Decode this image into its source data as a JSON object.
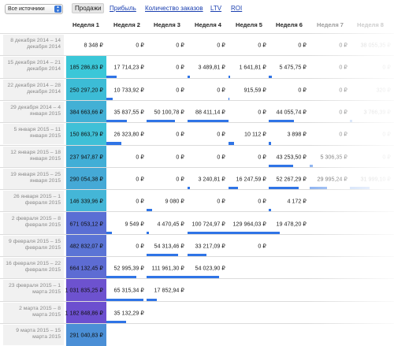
{
  "toolbar": {
    "source_select": "Все источники",
    "tabs": [
      "Продажи",
      "Прибыль",
      "Количество заказов",
      "LTV",
      "ROI"
    ],
    "active_tab": 0
  },
  "header": [
    "Неделя 1",
    "Неделя 2",
    "Неделя 3",
    "Неделя 4",
    "Неделя 5",
    "Неделя 6",
    "Неделя 7",
    "Неделя 8"
  ],
  "rows": [
    {
      "label": "8 декабря 2014 – 14 декабря 2014",
      "cells": [
        "8 348 ₽",
        "0 ₽",
        "0 ₽",
        "0 ₽",
        "0 ₽",
        "0 ₽",
        "0 ₽",
        "38 055,35 ₽"
      ],
      "bars": [
        0,
        0,
        0,
        0,
        0,
        0,
        0,
        0
      ]
    },
    {
      "label": "15 декабря 2014 – 21 декабря 2014",
      "cells": [
        "185 286,83 ₽",
        "17 714,23 ₽",
        "0 ₽",
        "3 489,81 ₽",
        "1 641,81 ₽",
        "5 475,75 ₽",
        "0 ₽",
        "0 ₽"
      ],
      "bars": [
        0,
        0.25,
        0,
        0.05,
        0.03,
        0.08,
        0,
        0
      ]
    },
    {
      "label": "22 декабря 2014 – 28 декабря 2014",
      "cells": [
        "250 297,20 ₽",
        "10 733,92 ₽",
        "0 ₽",
        "0 ₽",
        "915,59 ₽",
        "0 ₽",
        "0 ₽",
        "320 ₽"
      ],
      "bars": [
        0,
        0.16,
        0,
        0,
        0.02,
        0,
        0,
        0
      ]
    },
    {
      "label": "29 декабря 2014 – 4 января 2015",
      "cells": [
        "384 663,66 ₽",
        "35 837,55 ₽",
        "50 100,78 ₽",
        "88 411,14 ₽",
        "0 ₽",
        "44 055,74 ₽",
        "0 ₽",
        "3 766,39 ₽"
      ],
      "bars": [
        0,
        0.5,
        0.7,
        1,
        0,
        0.62,
        0,
        0.05
      ]
    },
    {
      "label": "5 января 2015 – 11 января 2015",
      "cells": [
        "150 863,79 ₽",
        "26 323,80 ₽",
        "0 ₽",
        "0 ₽",
        "10 112 ₽",
        "3 898 ₽",
        "0 ₽",
        "0 ₽"
      ],
      "bars": [
        0,
        0.37,
        0,
        0,
        0.14,
        0.06,
        0,
        0
      ]
    },
    {
      "label": "12 января 2015 – 18 января 2015",
      "cells": [
        "237 947,87 ₽",
        "0 ₽",
        "0 ₽",
        "0 ₽",
        "0 ₽",
        "43 253,50 ₽",
        "5 306,35 ₽",
        "0 ₽"
      ],
      "bars": [
        0,
        0,
        0,
        0,
        0,
        0.6,
        0.08,
        0
      ]
    },
    {
      "label": "19 января 2015 – 25 января 2015",
      "cells": [
        "290 054,38 ₽",
        "0 ₽",
        "0 ₽",
        "3 240,81 ₽",
        "16 247,59 ₽",
        "52 267,29 ₽",
        "29 995,24 ₽",
        "31 999,10 ₽"
      ],
      "bars": [
        0,
        0,
        0,
        0.05,
        0.23,
        0.73,
        0.42,
        0.45
      ]
    },
    {
      "label": "26 января 2015 – 1 февраля 2015",
      "cells": [
        "146 339,96 ₽",
        "0 ₽",
        "9 080 ₽",
        "0 ₽",
        "0 ₽",
        "4 172 ₽",
        "",
        ""
      ],
      "bars": [
        0,
        0,
        0.13,
        0,
        0,
        0.06,
        0,
        0
      ]
    },
    {
      "label": "2 февраля 2015 – 8 февраля 2015",
      "cells": [
        "671 053,12 ₽",
        "9 549 ₽",
        "4 470,45 ₽",
        "100 724,97 ₽",
        "129 964,03 ₽",
        "19 478,20 ₽",
        "",
        ""
      ],
      "bars": [
        0,
        0.13,
        0.06,
        1,
        1,
        0.27,
        0,
        0
      ]
    },
    {
      "label": "9 февраля 2015 – 15 февраля 2015",
      "cells": [
        "482 832,07 ₽",
        "0 ₽",
        "54 313,46 ₽",
        "33 217,09 ₽",
        "0 ₽",
        "",
        "",
        ""
      ],
      "bars": [
        0,
        0,
        0.76,
        0.47,
        0,
        0,
        0,
        0
      ]
    },
    {
      "label": "16 февраля 2015 – 22 февраля 2015",
      "cells": [
        "664 132,45 ₽",
        "52 995,39 ₽",
        "111 961,30 ₽",
        "54 023,90 ₽",
        "",
        "",
        "",
        ""
      ],
      "bars": [
        0,
        0.74,
        1,
        0.76,
        0,
        0,
        0,
        0
      ]
    },
    {
      "label": "23 февраля 2015 – 1 марта 2015",
      "cells": [
        "1 031 835,25 ₽",
        "65 315,34 ₽",
        "17 852,94 ₽",
        "",
        "",
        "",
        "",
        ""
      ],
      "bars": [
        0,
        0.91,
        0.25,
        0,
        0,
        0,
        0,
        0
      ]
    },
    {
      "label": "2 марта 2015 – 8 марта 2015",
      "cells": [
        "1 182 848,86 ₽",
        "35 132,29 ₽",
        "",
        "",
        "",
        "",
        "",
        ""
      ],
      "bars": [
        0,
        0.49,
        0,
        0,
        0,
        0,
        0,
        0
      ]
    },
    {
      "label": "9 марта 2015 – 15 марта 2015",
      "cells": [
        "291 040,83 ₽",
        "",
        "",
        "",
        "",
        "",
        "",
        ""
      ],
      "bars": [
        0,
        0,
        0,
        0,
        0,
        0,
        0,
        0
      ]
    }
  ],
  "first_col_colors": [
    "#ffffff",
    "#3bc7d8",
    "#3cbcd6",
    "#43b0d5",
    "#3fc0d7",
    "#41aed6",
    "#45a9d6",
    "#44b6d7",
    "#5a6fd4",
    "#5b74d5",
    "#5d6cd3",
    "#6d52cf",
    "#6c4fcf",
    "#4b8fd6"
  ],
  "bar_color": "#2f74e6"
}
